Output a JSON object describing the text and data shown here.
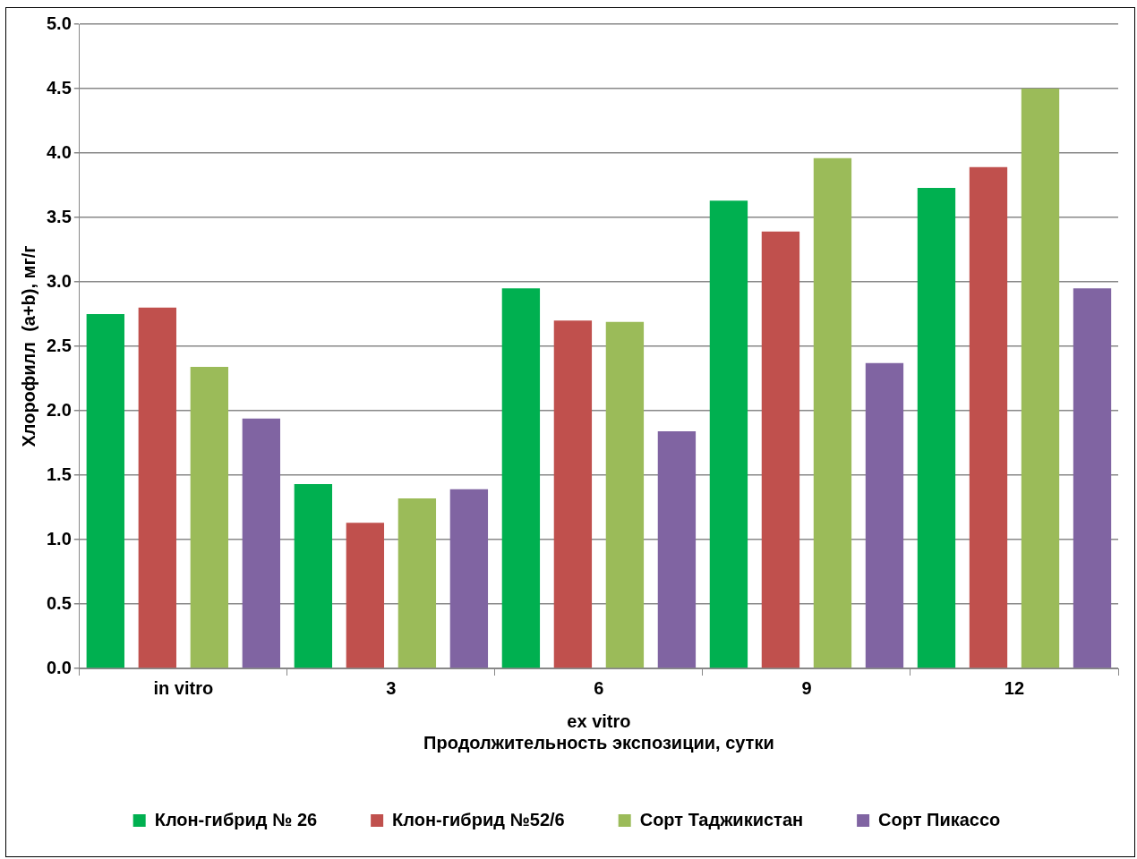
{
  "chart_data": {
    "type": "bar",
    "categories": [
      "in vitro",
      "3",
      "6",
      "9",
      "12"
    ],
    "xlabel": "ex vitro\nПродолжительность экспозиции, сутки",
    "ylabel": "Хлорофилл  (a+b), мг/г",
    "series": [
      {
        "name": "Клон-гибрид № 26",
        "color": "#00b050",
        "values": [
          2.75,
          1.43,
          2.95,
          3.63,
          3.73
        ]
      },
      {
        "name": "Клон-гибрид №52/6",
        "color": "#c0504d",
        "values": [
          2.8,
          1.13,
          2.7,
          3.39,
          3.89
        ]
      },
      {
        "name": "Сорт Таджикистан",
        "color": "#9bbb59",
        "values": [
          2.34,
          1.32,
          2.69,
          3.96,
          4.5
        ]
      },
      {
        "name": "Сорт Пикассо",
        "color": "#8064a2",
        "values": [
          1.94,
          1.39,
          1.84,
          2.37,
          2.95
        ]
      }
    ],
    "ylim": [
      0,
      5
    ],
    "yticks": [
      {
        "value": 0,
        "label": "0.0"
      },
      {
        "value": 0.5,
        "label": "0.5"
      },
      {
        "value": 1,
        "label": "1.0"
      },
      {
        "value": 1.5,
        "label": "1.5"
      },
      {
        "value": 2,
        "label": "2.0"
      },
      {
        "value": 2.5,
        "label": "2.5"
      },
      {
        "value": 3,
        "label": "3.0"
      },
      {
        "value": 3.5,
        "label": "3.5"
      },
      {
        "value": 4,
        "label": "4.0"
      },
      {
        "value": 4.5,
        "label": "4.5"
      },
      {
        "value": 5,
        "label": "5.0"
      }
    ],
    "grid": "y",
    "legend": "bottom"
  }
}
